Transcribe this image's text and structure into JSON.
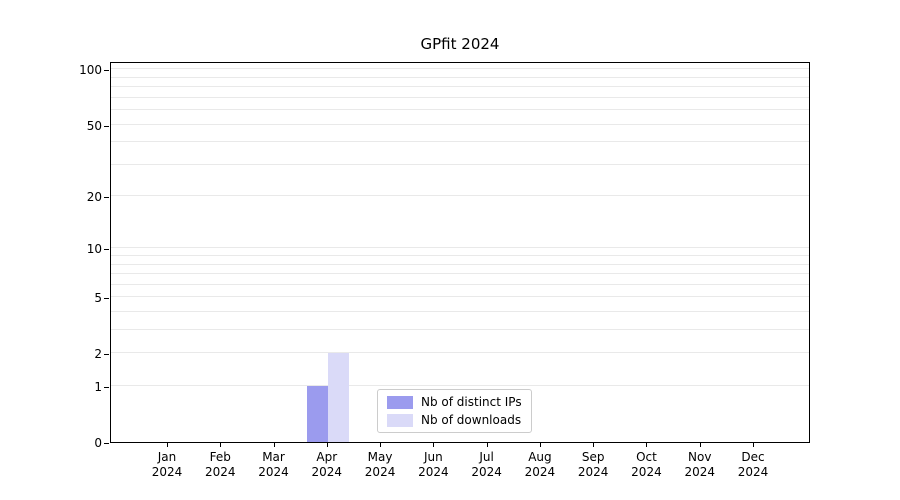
{
  "chart_data": {
    "type": "bar",
    "title": "GPfit 2024",
    "scale": "log1p",
    "x_categories": [
      "Jan",
      "Feb",
      "Mar",
      "Apr",
      "May",
      "Jun",
      "Jul",
      "Aug",
      "Sep",
      "Oct",
      "Nov",
      "Dec"
    ],
    "x_sublabel": "2024",
    "series": [
      {
        "name": "Nb of distinct IPs",
        "color": "#9b9bee",
        "values": [
          0,
          0,
          0,
          1,
          0,
          0,
          0,
          0,
          0,
          0,
          0,
          0
        ]
      },
      {
        "name": "Nb of downloads",
        "color": "#dadaf8",
        "values": [
          0,
          0,
          0,
          2,
          0,
          0,
          0,
          0,
          0,
          0,
          0,
          0
        ]
      }
    ],
    "yticks": [
      0,
      1,
      2,
      5,
      10,
      20,
      50,
      100
    ],
    "gridline_values": [
      1,
      2,
      3,
      4,
      5,
      6,
      7,
      8,
      9,
      10,
      20,
      30,
      40,
      50,
      60,
      70,
      80,
      90,
      100
    ],
    "ymax": 111,
    "legend_position": "bottom-center",
    "grid": "horizontal-minor"
  }
}
